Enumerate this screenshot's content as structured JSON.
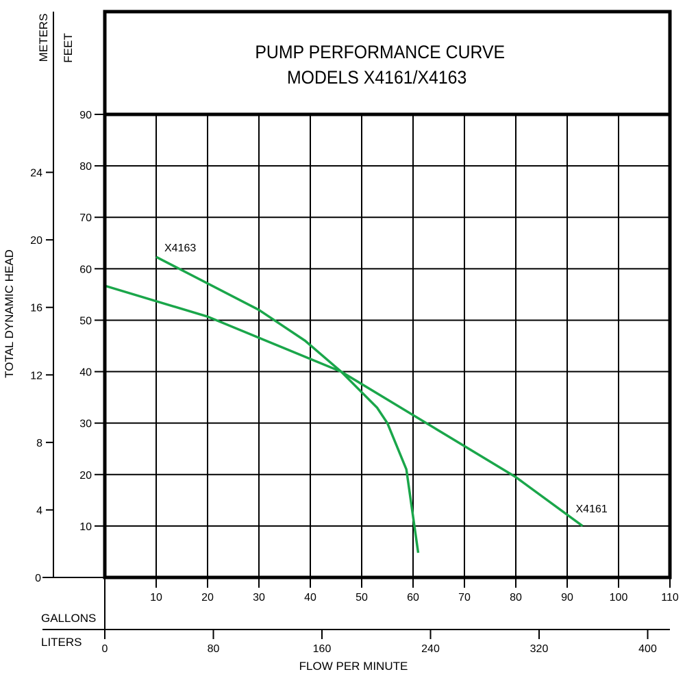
{
  "chart_data": {
    "type": "line",
    "title": "PUMP PERFORMANCE CURVE",
    "subtitle": "MODELS X4161/X4163",
    "xlabel": "FLOW PER MINUTE",
    "ylabel": "TOTAL DYNAMIC HEAD",
    "x_units": {
      "primary": "GALLONS",
      "secondary": "LITERS"
    },
    "y_units": {
      "primary": "FEET",
      "secondary": "METERS"
    },
    "xlim": [
      0,
      110
    ],
    "ylim": [
      0,
      90
    ],
    "grid": true,
    "x_ticks_gallons": [
      10,
      20,
      30,
      40,
      50,
      60,
      70,
      80,
      90,
      100,
      110
    ],
    "x_ticks_liters": [
      0,
      80,
      160,
      240,
      320,
      400
    ],
    "y_ticks_feet": [
      10,
      20,
      30,
      40,
      50,
      60,
      70,
      80,
      90
    ],
    "y_ticks_meters": [
      0,
      4,
      8,
      12,
      16,
      20,
      24
    ],
    "line_color": "#1aa64a",
    "series": [
      {
        "name": "X4161",
        "x": [
          0,
          20,
          46,
          80,
          93
        ],
        "y": [
          56.7,
          50.7,
          40,
          19.5,
          10
        ]
      },
      {
        "name": "X4163",
        "x": [
          10,
          30,
          33,
          39,
          46,
          53,
          55,
          58.7,
          61
        ],
        "y": [
          62.3,
          52,
          50,
          46,
          40,
          33,
          30,
          21,
          4.8
        ]
      }
    ]
  }
}
